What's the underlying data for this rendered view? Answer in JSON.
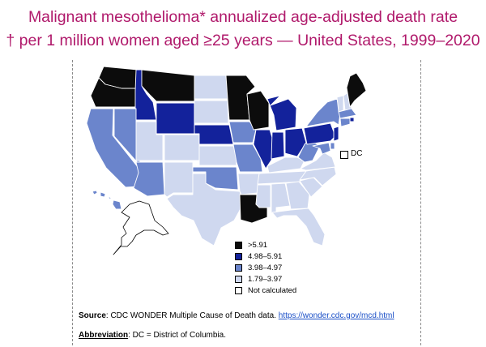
{
  "title": {
    "line1": "Malignant mesothelioma* annualized age-adjusted death rate",
    "line2": "† per 1 million women aged ≥25 years — United States, 1999–2020"
  },
  "colors": {
    "title": "#b0196b",
    "cat1": "#0c0c0c",
    "cat2": "#13229b",
    "cat3": "#6b85cc",
    "cat4": "#cfd8ef",
    "cat5": "#ffffff",
    "border": "#ffffff"
  },
  "legend": [
    {
      "label": ">5.91",
      "color": "#0c0c0c"
    },
    {
      "label": "4.98–5.91",
      "color": "#13229b"
    },
    {
      "label": "3.98–4.97",
      "color": "#6b85cc"
    },
    {
      "label": "1.79–3.97",
      "color": "#cfd8ef"
    },
    {
      "label": "Not calculated",
      "color": "#ffffff"
    }
  ],
  "dc_label": "DC",
  "states": {
    "WA": 1,
    "OR": 1,
    "CA": 3,
    "ID": 2,
    "NV": 3,
    "MT": 1,
    "WY": 2,
    "UT": 4,
    "AZ": 3,
    "CO": 4,
    "NM": 4,
    "ND": 4,
    "SD": 4,
    "NE": 2,
    "KS": 4,
    "OK": 3,
    "TX": 4,
    "MN": 1,
    "IA": 3,
    "MO": 3,
    "AR": 4,
    "LA": 1,
    "WI": 1,
    "IL": 2,
    "MI": 2,
    "IN": 2,
    "OH": 2,
    "KY": 4,
    "TN": 4,
    "MS": 4,
    "AL": 4,
    "GA": 4,
    "FL": 4,
    "SC": 4,
    "NC": 4,
    "VA": 4,
    "WV": 3,
    "PA": 2,
    "NY": 3,
    "VT": 4,
    "NH": 4,
    "ME": 1,
    "MA": 3,
    "RI": 2,
    "CT": 3,
    "NJ": 2,
    "DE": 3,
    "MD": 3,
    "AK": 5,
    "HI": 3
  },
  "source": {
    "label": "Source",
    "text": ": CDC WONDER Multiple Cause of Death data. ",
    "link": "https://wonder.cdc.gov/mcd.html"
  },
  "abbreviation": {
    "label": "Abbreviation",
    "text": ": DC = District of Columbia."
  }
}
